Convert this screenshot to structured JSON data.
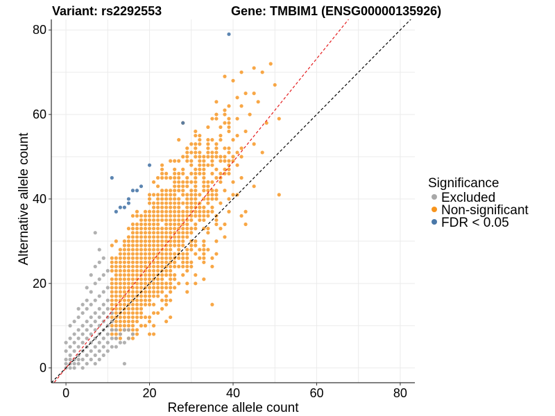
{
  "chart_data": {
    "type": "scatter",
    "title_left": "Variant: rs2292553",
    "title_right": "Gene: TMBIM1 (ENSG00000135926)",
    "xlabel": "Reference allele count",
    "ylabel": "Alternative allele count",
    "xlim": [
      -3.5,
      83.5
    ],
    "ylim": [
      -3.5,
      82.5
    ],
    "xticks": [
      0,
      20,
      40,
      60,
      80
    ],
    "yticks": [
      0,
      20,
      40,
      60,
      80
    ],
    "grid": true,
    "reference_lines": [
      {
        "name": "identity",
        "slope": 1.0,
        "intercept": 0,
        "color": "#000000",
        "style": "dashed"
      },
      {
        "name": "fit",
        "slope": 1.22,
        "intercept": 0,
        "color": "#e41a1c",
        "style": "dashed"
      }
    ],
    "legend": {
      "title": "Significance",
      "position": "right",
      "entries": [
        {
          "label": "Excluded",
          "color": "#a8a8a8"
        },
        {
          "label": "Non-significant",
          "color": "#f7941d"
        },
        {
          "label": "FDR < 0.05",
          "color": "#4a78a8"
        }
      ]
    },
    "series": [
      {
        "name": "Excluded",
        "color": "#a8a8a8",
        "points": [
          [
            0,
            0
          ],
          [
            0,
            1
          ],
          [
            0,
            2
          ],
          [
            0,
            4
          ],
          [
            0,
            6
          ],
          [
            1,
            0
          ],
          [
            1,
            1
          ],
          [
            1,
            2
          ],
          [
            1,
            3
          ],
          [
            1,
            5
          ],
          [
            1,
            7
          ],
          [
            1,
            10
          ],
          [
            2,
            0
          ],
          [
            2,
            1
          ],
          [
            2,
            2
          ],
          [
            2,
            4
          ],
          [
            2,
            6
          ],
          [
            2,
            8
          ],
          [
            2,
            11
          ],
          [
            3,
            1
          ],
          [
            3,
            2
          ],
          [
            3,
            3
          ],
          [
            3,
            5
          ],
          [
            3,
            7
          ],
          [
            3,
            9
          ],
          [
            3,
            12
          ],
          [
            3,
            14
          ],
          [
            4,
            0
          ],
          [
            4,
            2
          ],
          [
            4,
            4
          ],
          [
            4,
            6
          ],
          [
            4,
            8
          ],
          [
            4,
            10
          ],
          [
            4,
            13
          ],
          [
            4,
            15
          ],
          [
            5,
            1
          ],
          [
            5,
            3
          ],
          [
            5,
            5
          ],
          [
            5,
            7
          ],
          [
            5,
            9
          ],
          [
            5,
            11
          ],
          [
            5,
            14
          ],
          [
            5,
            16
          ],
          [
            5,
            19
          ],
          [
            6,
            2
          ],
          [
            6,
            4
          ],
          [
            6,
            6
          ],
          [
            6,
            8
          ],
          [
            6,
            10
          ],
          [
            6,
            12
          ],
          [
            6,
            15
          ],
          [
            6,
            18
          ],
          [
            6,
            22
          ],
          [
            7,
            1
          ],
          [
            7,
            3
          ],
          [
            7,
            5
          ],
          [
            7,
            7
          ],
          [
            7,
            9
          ],
          [
            7,
            11
          ],
          [
            7,
            13
          ],
          [
            7,
            16
          ],
          [
            7,
            20
          ],
          [
            7,
            24
          ],
          [
            7,
            32
          ],
          [
            8,
            2
          ],
          [
            8,
            4
          ],
          [
            8,
            6
          ],
          [
            8,
            8
          ],
          [
            8,
            10
          ],
          [
            8,
            12
          ],
          [
            8,
            14
          ],
          [
            8,
            17
          ],
          [
            8,
            21
          ],
          [
            8,
            25
          ],
          [
            8,
            28
          ],
          [
            9,
            3
          ],
          [
            9,
            5
          ],
          [
            9,
            7
          ],
          [
            9,
            9
          ],
          [
            9,
            11
          ],
          [
            9,
            13
          ],
          [
            9,
            15
          ],
          [
            9,
            18
          ],
          [
            9,
            22
          ],
          [
            9,
            26
          ],
          [
            10,
            4
          ],
          [
            10,
            6
          ],
          [
            10,
            8
          ],
          [
            10,
            10
          ],
          [
            10,
            12
          ],
          [
            10,
            14
          ],
          [
            10,
            16
          ],
          [
            10,
            19
          ],
          [
            10,
            23
          ],
          [
            11,
            5
          ],
          [
            11,
            7
          ],
          [
            11,
            9
          ],
          [
            11,
            11
          ],
          [
            11,
            13
          ],
          [
            12,
            5
          ],
          [
            12,
            7
          ],
          [
            12,
            9
          ],
          [
            13,
            6
          ],
          [
            13,
            8
          ],
          [
            14,
            1
          ],
          [
            14,
            6
          ],
          [
            14,
            9
          ],
          [
            15,
            7
          ],
          [
            15,
            9
          ],
          [
            16,
            8
          ]
        ]
      },
      {
        "name": "FDR < 0.05",
        "color": "#4a78a8",
        "points": [
          [
            11,
            45
          ],
          [
            12,
            37
          ],
          [
            13,
            38
          ],
          [
            14,
            38
          ],
          [
            15,
            39
          ],
          [
            15,
            40
          ],
          [
            16,
            42
          ],
          [
            17,
            42
          ],
          [
            18,
            43
          ],
          [
            20,
            48
          ],
          [
            28,
            58
          ],
          [
            39,
            79
          ]
        ]
      }
    ],
    "orange_cloud": {
      "name": "Non-significant",
      "color": "#f7941d",
      "x_range": [
        9,
        51
      ],
      "y_range": [
        7,
        72
      ],
      "point_count": 1250,
      "center_slope": 1.2
    }
  }
}
